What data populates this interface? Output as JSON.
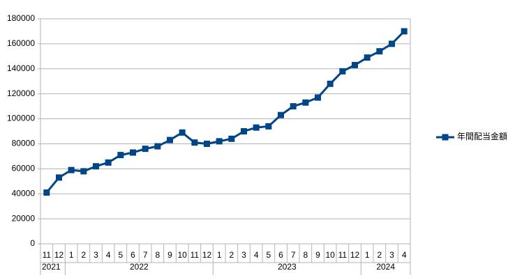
{
  "chart_data": {
    "type": "line",
    "groups": [
      {
        "label": "2021",
        "categories": [
          "11",
          "12"
        ]
      },
      {
        "label": "2022",
        "categories": [
          "1",
          "2",
          "3",
          "4",
          "5",
          "6",
          "7",
          "8",
          "9",
          "10",
          "11",
          "12"
        ]
      },
      {
        "label": "2023",
        "categories": [
          "1",
          "2",
          "3",
          "4",
          "5",
          "6",
          "7",
          "8",
          "9",
          "10",
          "11",
          "12"
        ]
      },
      {
        "label": "2024",
        "categories": [
          "1",
          "2",
          "3",
          "4"
        ]
      }
    ],
    "series": [
      {
        "name": "年間配当金額",
        "color": "#004586",
        "values": [
          41000,
          53000,
          59000,
          58000,
          62000,
          65000,
          71000,
          73000,
          76000,
          78000,
          83000,
          89000,
          81000,
          80000,
          82000,
          84000,
          90000,
          93000,
          94000,
          103000,
          110000,
          113000,
          117000,
          128000,
          138000,
          143000,
          149000,
          154000,
          160000,
          170000
        ]
      }
    ],
    "ylim": [
      0,
      180000
    ],
    "yticks": [
      0,
      20000,
      40000,
      60000,
      80000,
      100000,
      120000,
      140000,
      160000,
      180000
    ],
    "grid": true,
    "legend": "right"
  }
}
